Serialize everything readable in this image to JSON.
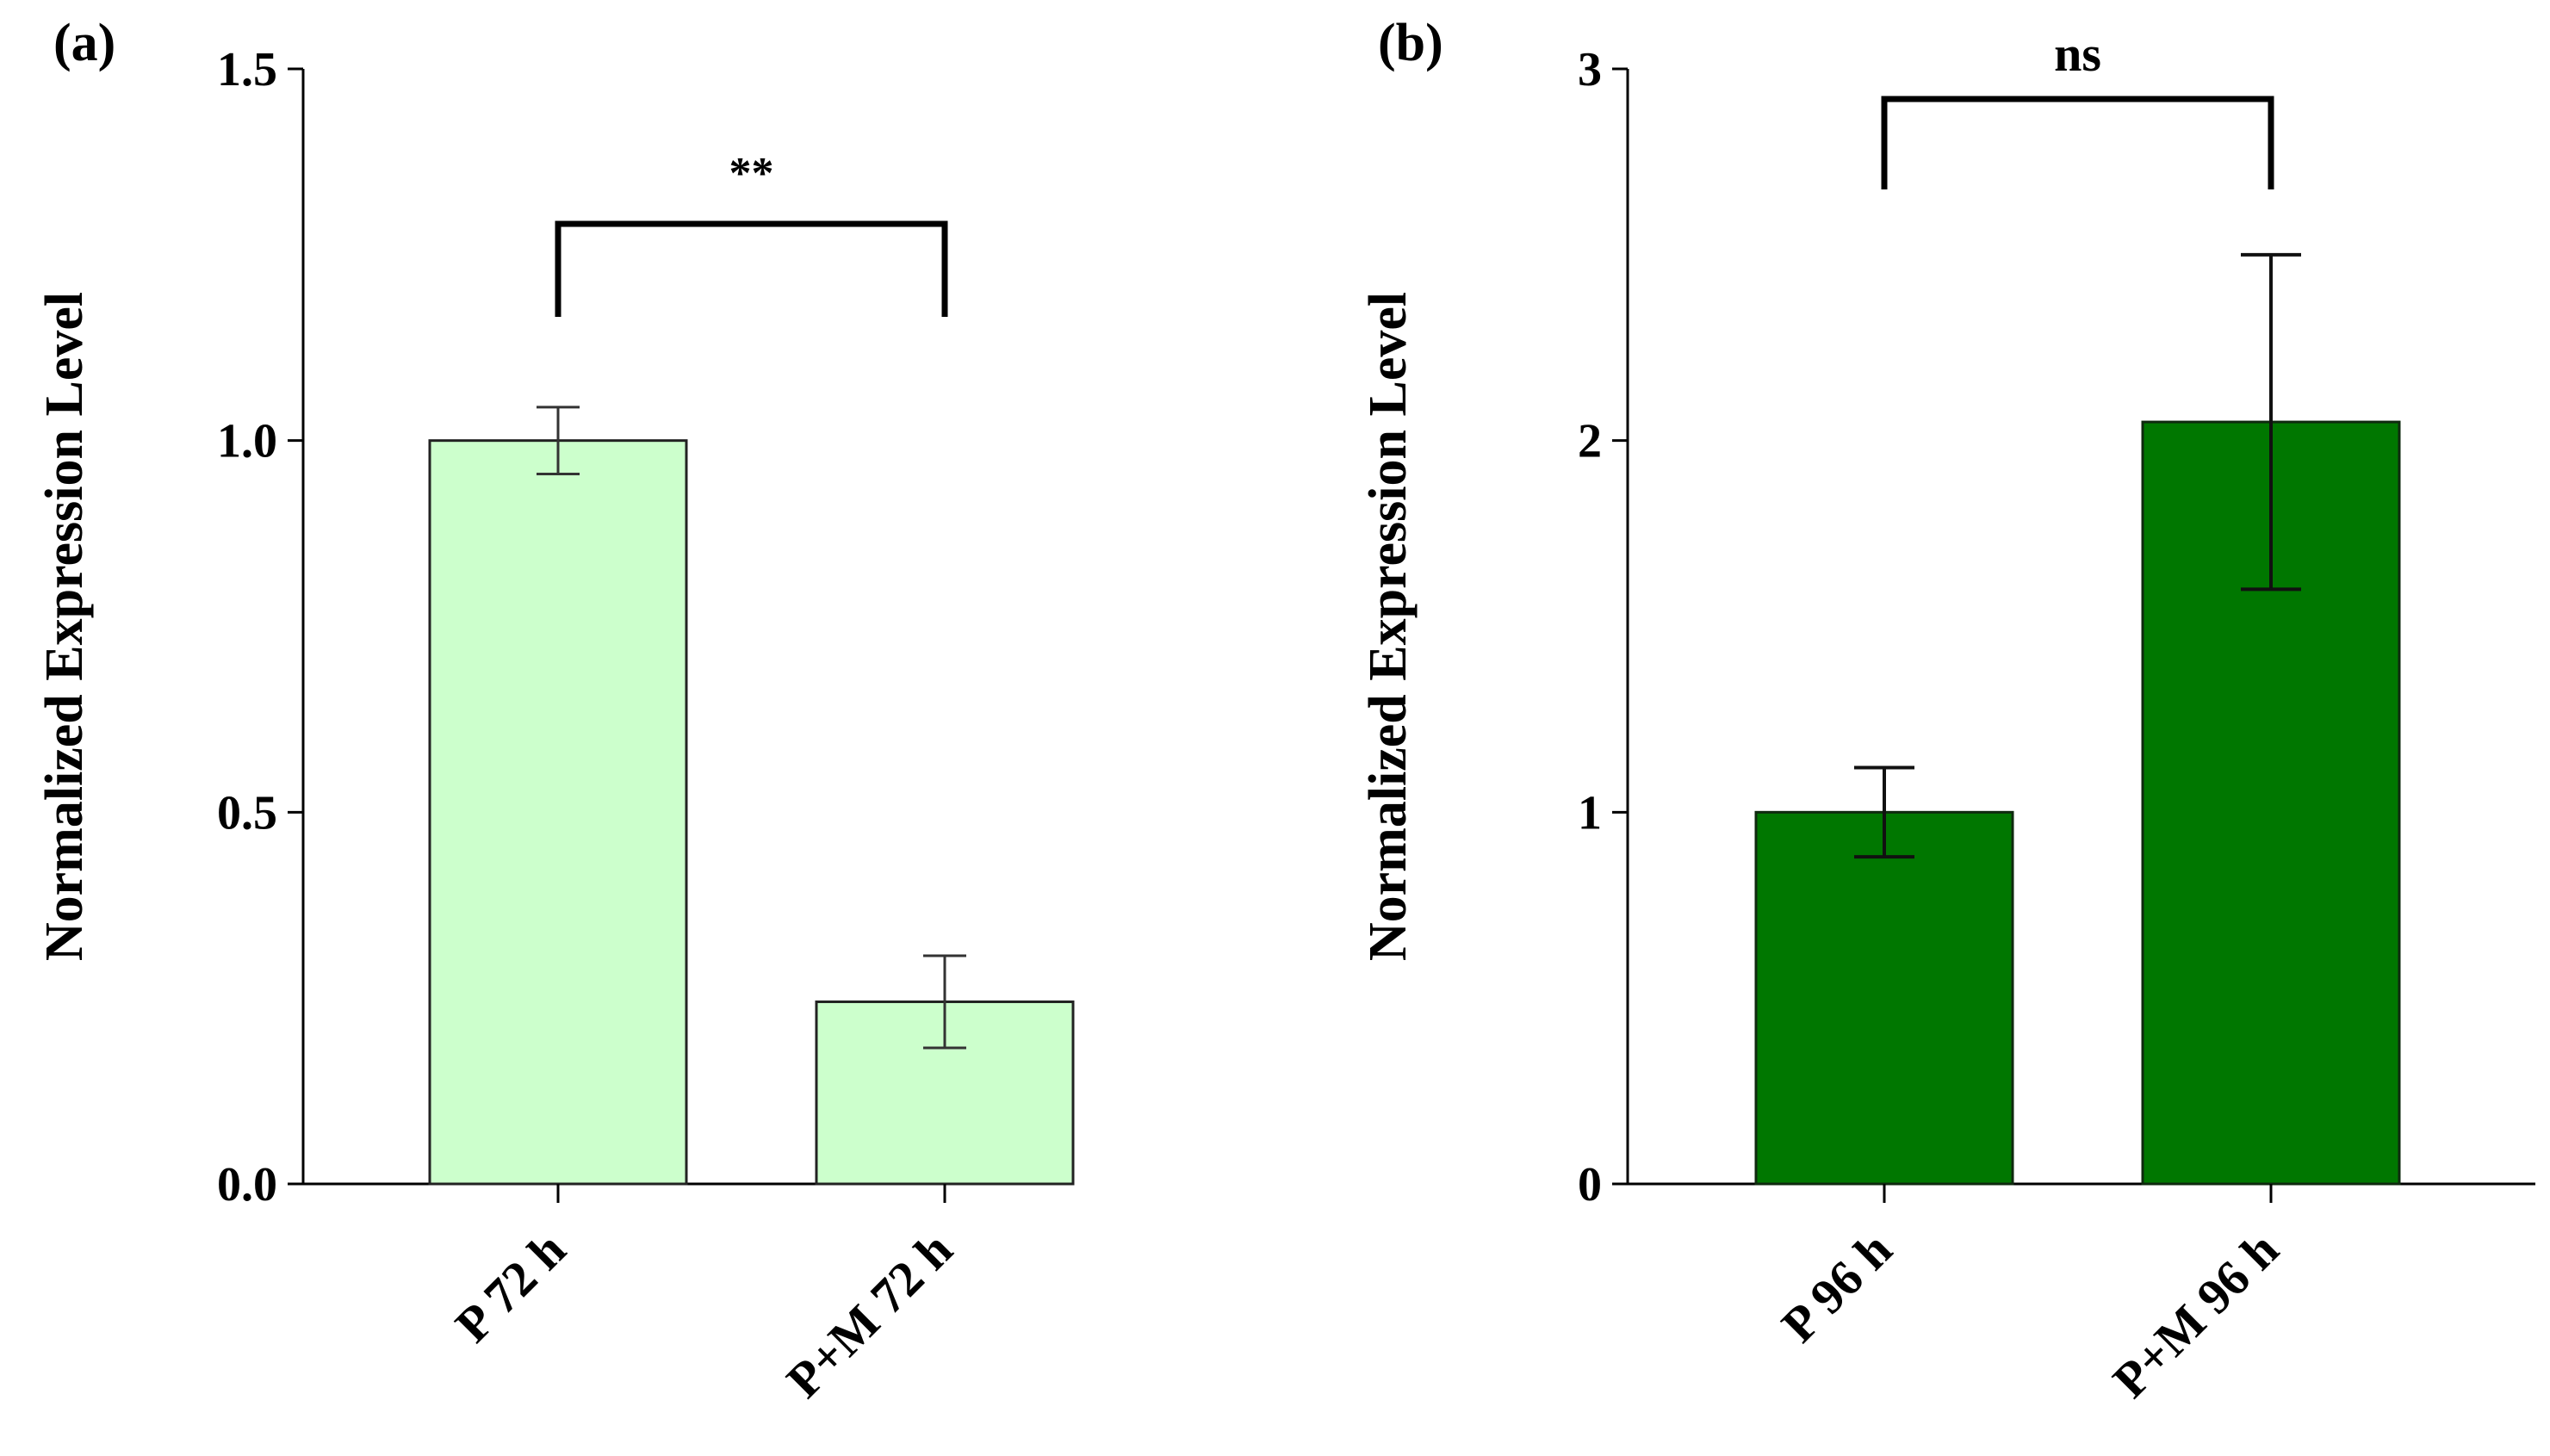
{
  "chart_data": [
    {
      "panel": "(a)",
      "type": "bar",
      "categories": [
        "P 72 h",
        "P+M 72 h"
      ],
      "values": [
        1.0,
        0.245
      ],
      "errors": [
        0.045,
        0.062
      ],
      "ylabel": "Normalized Expression Level",
      "xlabel": "",
      "ylim": [
        0,
        1.5
      ],
      "yticks": [
        0.0,
        0.5,
        1.0,
        1.5
      ],
      "ytick_labels": [
        "0.0",
        "0.5",
        "1.0",
        "1.5"
      ],
      "bar_color": "#ccffcc",
      "grid": false,
      "significance": {
        "label": "**",
        "between": [
          0,
          1
        ]
      }
    },
    {
      "panel": "(b)",
      "type": "bar",
      "categories": [
        "P 96 h",
        "P+M 96 h"
      ],
      "values": [
        1.0,
        2.05
      ],
      "errors": [
        0.12,
        0.45
      ],
      "ylabel": "Normalized Expression Level",
      "xlabel": "",
      "ylim": [
        0,
        3
      ],
      "yticks": [
        0,
        1,
        2,
        3
      ],
      "ytick_labels": [
        "0",
        "1",
        "2",
        "3"
      ],
      "bar_color": "#007700",
      "grid": false,
      "significance": {
        "label": "ns",
        "between": [
          0,
          1
        ]
      }
    }
  ]
}
